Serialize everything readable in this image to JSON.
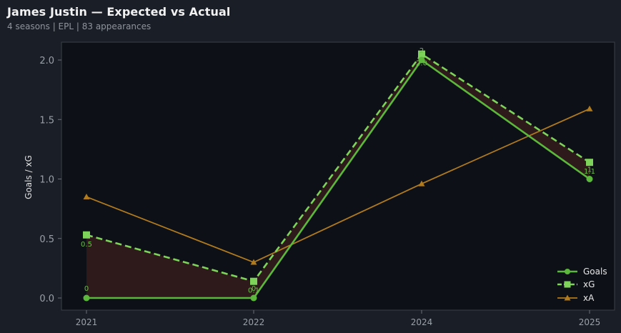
{
  "header": {
    "title": "James Justin — Expected vs Actual",
    "subtitle": "4 seasons | EPL | 83 appearances"
  },
  "chart_data": {
    "type": "line",
    "categories": [
      "2021",
      "2022",
      "2024",
      "2025"
    ],
    "ylabel": "Goals / xG",
    "ylim": [
      -0.1,
      2.15
    ],
    "yticks": [
      0.0,
      0.5,
      1.0,
      1.5,
      2.0
    ],
    "ytick_labels": [
      "0.0",
      "0.5",
      "1.0",
      "1.5",
      "2.0"
    ],
    "grid": false,
    "legend_position": "bottom-right",
    "series": [
      {
        "name": "Goals",
        "values": [
          0,
          0,
          2,
          1
        ],
        "labels": [
          "0",
          "0",
          "2",
          "1"
        ],
        "color": "#5cb83c",
        "marker": "circle",
        "style": "solid"
      },
      {
        "name": "xG",
        "values": [
          0.53,
          0.14,
          2.05,
          1.14
        ],
        "labels": [
          "0.5",
          "0.1",
          "2.0",
          "1.1"
        ],
        "color": "#7ed35a",
        "marker": "square",
        "style": "dashed"
      },
      {
        "name": "xA",
        "values": [
          0.85,
          0.3,
          0.96,
          1.59
        ],
        "color": "#b07a1e",
        "marker": "triangle",
        "style": "solid"
      }
    ],
    "fill_between": {
      "color": "#3a1e1e",
      "opacity": 0.75
    }
  }
}
